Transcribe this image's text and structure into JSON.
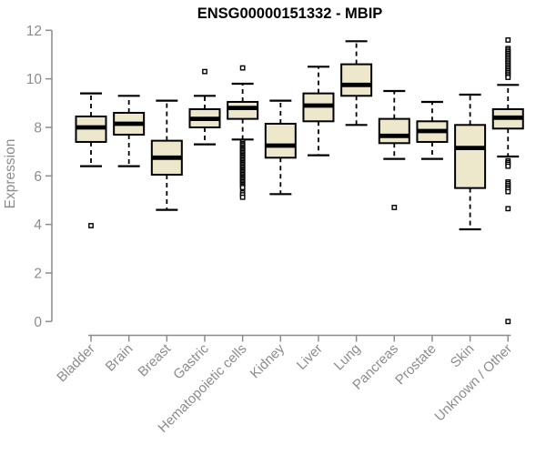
{
  "chart_data": {
    "type": "box",
    "title": "ENSG00000151332 - MBIP",
    "xlabel": "",
    "ylabel": "Expression",
    "ylim": [
      0,
      12
    ],
    "yticks": [
      0,
      2,
      4,
      6,
      8,
      10,
      12
    ],
    "grid": false,
    "legend": "none",
    "categories": [
      "Bladder",
      "Brain",
      "Breast",
      "Gastric",
      "Hematopoietic cells",
      "Kidney",
      "Liver",
      "Lung",
      "Pancreas",
      "Prostate",
      "Skin",
      "Unknown / Other"
    ],
    "boxes": [
      {
        "label": "Bladder",
        "whisker_low": 6.4,
        "q1": 7.4,
        "median": 8.0,
        "q3": 8.45,
        "whisker_high": 9.4,
        "outliers": [
          3.95
        ]
      },
      {
        "label": "Brain",
        "whisker_low": 6.4,
        "q1": 7.7,
        "median": 8.15,
        "q3": 8.6,
        "whisker_high": 9.3,
        "outliers": []
      },
      {
        "label": "Breast",
        "whisker_low": 4.6,
        "q1": 6.05,
        "median": 6.75,
        "q3": 7.45,
        "whisker_high": 9.1,
        "outliers": []
      },
      {
        "label": "Gastric",
        "whisker_low": 7.3,
        "q1": 8.0,
        "median": 8.35,
        "q3": 8.75,
        "whisker_high": 9.3,
        "outliers": [
          10.3
        ]
      },
      {
        "label": "Hematopoietic cells",
        "whisker_low": 7.5,
        "q1": 8.35,
        "median": 8.8,
        "q3": 9.05,
        "whisker_high": 9.8,
        "outliers": [
          10.45,
          7.4,
          7.33,
          7.27,
          7.2,
          7.14,
          7.08,
          7.02,
          6.96,
          6.9,
          6.84,
          6.78,
          6.72,
          6.66,
          6.6,
          6.54,
          6.48,
          6.42,
          6.36,
          6.3,
          6.24,
          6.18,
          6.12,
          6.06,
          6.0,
          5.94,
          5.88,
          5.82,
          5.76,
          5.7,
          5.64,
          5.58,
          5.52,
          5.3,
          5.22,
          5.12
        ]
      },
      {
        "label": "Kidney",
        "whisker_low": 5.25,
        "q1": 6.75,
        "median": 7.25,
        "q3": 8.15,
        "whisker_high": 9.1,
        "outliers": []
      },
      {
        "label": "Liver",
        "whisker_low": 6.85,
        "q1": 8.25,
        "median": 8.9,
        "q3": 9.4,
        "whisker_high": 10.5,
        "outliers": []
      },
      {
        "label": "Lung",
        "whisker_low": 8.1,
        "q1": 9.3,
        "median": 9.75,
        "q3": 10.6,
        "whisker_high": 11.55,
        "outliers": []
      },
      {
        "label": "Pancreas",
        "whisker_low": 6.7,
        "q1": 7.35,
        "median": 7.65,
        "q3": 8.35,
        "whisker_high": 9.5,
        "outliers": [
          4.7
        ]
      },
      {
        "label": "Prostate",
        "whisker_low": 6.7,
        "q1": 7.4,
        "median": 7.85,
        "q3": 8.25,
        "whisker_high": 9.05,
        "outliers": []
      },
      {
        "label": "Skin",
        "whisker_low": 3.8,
        "q1": 5.5,
        "median": 7.15,
        "q3": 8.1,
        "whisker_high": 9.35,
        "outliers": []
      },
      {
        "label": "Unknown / Other",
        "whisker_low": 6.8,
        "q1": 7.95,
        "median": 8.4,
        "q3": 8.75,
        "whisker_high": 9.75,
        "outliers": [
          11.6,
          11.25,
          11.18,
          11.11,
          11.04,
          10.97,
          10.9,
          10.83,
          10.76,
          10.69,
          10.62,
          10.55,
          10.48,
          10.41,
          10.34,
          10.27,
          10.2,
          10.13,
          10.06,
          6.62,
          6.55,
          6.48,
          6.4,
          5.75,
          5.68,
          5.6,
          5.52,
          5.45,
          5.35,
          4.65,
          0.0
        ]
      }
    ],
    "colors": {
      "box_fill": "#EDE7CB",
      "box_border": "#000000",
      "median": "#000000",
      "whisker": "#000000",
      "outlier_fill": "#FFFFFF",
      "axis": "#8C8C8C",
      "tick_text": "#8C8C8C",
      "title": "#000000",
      "background": "#FFFFFF"
    }
  }
}
